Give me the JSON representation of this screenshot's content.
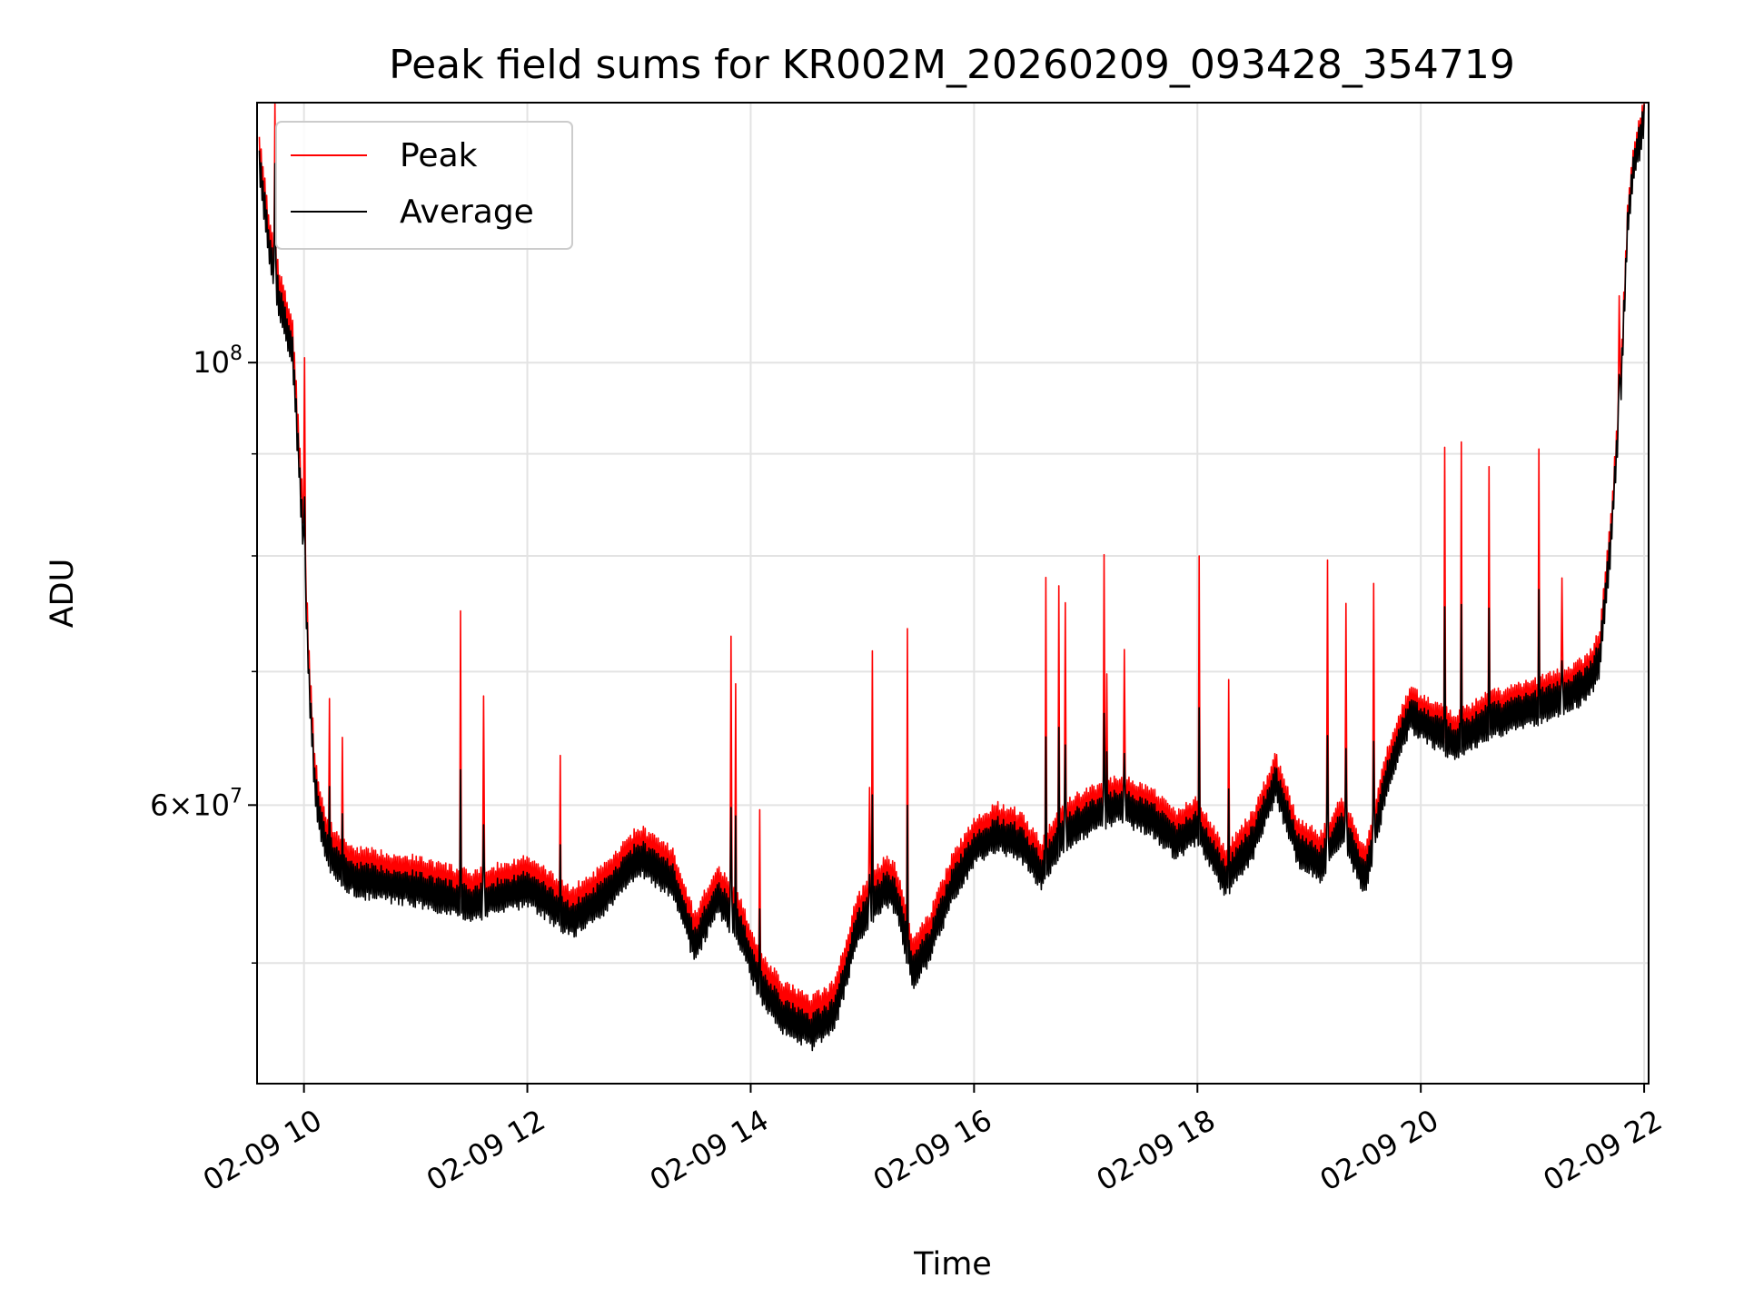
{
  "chart_data": {
    "type": "line",
    "title": "Peak field sums for KR002M_20260209_093428_354719",
    "xlabel": "Time",
    "ylabel": "ADU",
    "yscale": "log",
    "xlim": [
      9.58,
      22.04
    ],
    "ylim": [
      43500000,
      135000000
    ],
    "grid": true,
    "legend_position": "top-left",
    "x_ticks": [
      {
        "value": 10,
        "label": "02-09 10"
      },
      {
        "value": 12,
        "label": "02-09 12"
      },
      {
        "value": 14,
        "label": "02-09 14"
      },
      {
        "value": 16,
        "label": "02-09 16"
      },
      {
        "value": 18,
        "label": "02-09 18"
      },
      {
        "value": 20,
        "label": "02-09 20"
      },
      {
        "value": 22,
        "label": "02-09 22"
      }
    ],
    "y_major_ticks": [
      {
        "value": 100000000,
        "base": "10",
        "exp": "8"
      },
      {
        "value": 60000000,
        "mant": "6",
        "base": "10",
        "exp": "7"
      }
    ],
    "y_minor_ticks": [
      50000000,
      70000000,
      80000000,
      90000000
    ],
    "series": [
      {
        "name": "Peak",
        "color": "#ff0000",
        "x": [
          9.6,
          9.7,
          9.8,
          9.9,
          10.0,
          10.05,
          10.1,
          10.2,
          10.35,
          10.5,
          11.0,
          11.5,
          12.0,
          12.4,
          12.7,
          13.0,
          13.3,
          13.5,
          13.7,
          13.9,
          14.1,
          14.3,
          14.55,
          14.75,
          14.95,
          15.2,
          15.3,
          15.45,
          15.6,
          15.8,
          16.0,
          16.2,
          16.4,
          16.6,
          16.8,
          17.0,
          17.3,
          17.6,
          17.8,
          18.0,
          18.25,
          18.5,
          18.7,
          18.9,
          19.1,
          19.3,
          19.5,
          19.7,
          19.9,
          20.1,
          20.3,
          20.6,
          21.0,
          21.3,
          21.5,
          21.6,
          21.7,
          21.8,
          21.85,
          21.9,
          22.0
        ],
        "y": [
          128000000,
          115000000,
          108000000,
          103000000,
          82000000,
          70000000,
          62000000,
          58000000,
          56500000,
          56000000,
          55500000,
          54500000,
          55500000,
          53500000,
          55000000,
          57500000,
          56000000,
          52000000,
          55000000,
          53000000,
          49500000,
          48000000,
          47200000,
          48000000,
          53000000,
          55500000,
          55000000,
          50500000,
          52000000,
          55500000,
          58000000,
          59000000,
          58500000,
          56500000,
          59000000,
          60000000,
          61000000,
          60000000,
          58500000,
          59500000,
          56000000,
          58500000,
          62500000,
          58000000,
          57000000,
          59500000,
          56000000,
          63000000,
          67500000,
          66500000,
          65500000,
          67000000,
          68000000,
          69000000,
          70000000,
          72000000,
          82000000,
          100000000,
          118000000,
          126000000,
          133000000
        ]
      },
      {
        "name": "Average",
        "color": "#000000",
        "x": [
          9.6,
          9.7,
          9.8,
          9.9,
          10.0,
          10.05,
          10.1,
          10.2,
          10.35,
          10.5,
          11.0,
          11.5,
          12.0,
          12.4,
          12.7,
          13.0,
          13.3,
          13.5,
          13.7,
          13.9,
          14.1,
          14.3,
          14.55,
          14.75,
          14.95,
          15.2,
          15.3,
          15.45,
          15.6,
          15.8,
          16.0,
          16.2,
          16.4,
          16.6,
          16.8,
          17.0,
          17.3,
          17.6,
          17.8,
          18.0,
          18.25,
          18.5,
          18.7,
          18.9,
          19.1,
          19.3,
          19.5,
          19.7,
          19.9,
          20.1,
          20.3,
          20.6,
          21.0,
          21.3,
          21.5,
          21.6,
          21.7,
          21.8,
          21.85,
          21.9,
          22.0
        ],
        "y": [
          126000000,
          113000000,
          106000000,
          101000000,
          80000000,
          68500000,
          61000000,
          57000000,
          55500000,
          55000000,
          54500000,
          53500000,
          54500000,
          52500000,
          54000000,
          56500000,
          55000000,
          51000000,
          54000000,
          52000000,
          48500000,
          47000000,
          46200000,
          47000000,
          52000000,
          54500000,
          54000000,
          49500000,
          51000000,
          54500000,
          57000000,
          58000000,
          57500000,
          55500000,
          58000000,
          59000000,
          60000000,
          59000000,
          57500000,
          58500000,
          55000000,
          57500000,
          61500000,
          57000000,
          56000000,
          58500000,
          55000000,
          62000000,
          66500000,
          65500000,
          64500000,
          66000000,
          67000000,
          68000000,
          69000000,
          71000000,
          81000000,
          99000000,
          117000000,
          125000000,
          132000000
        ]
      }
    ]
  }
}
